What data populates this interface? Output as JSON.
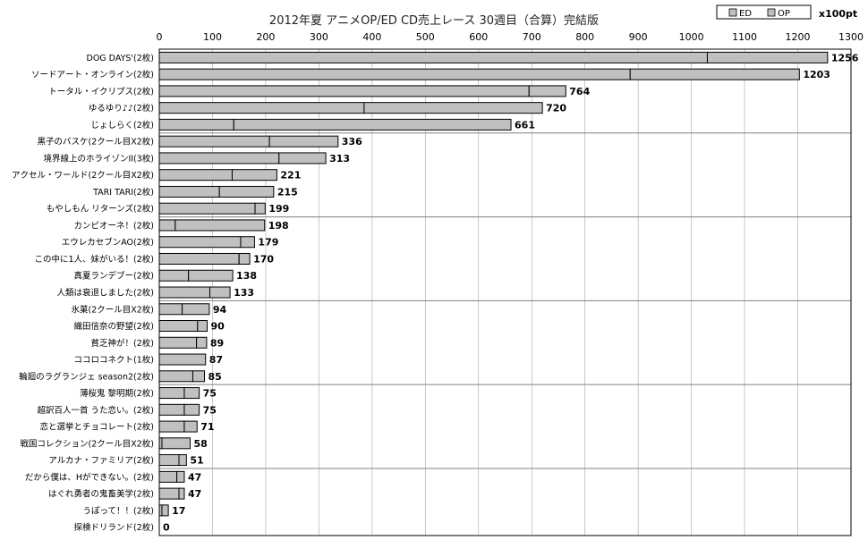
{
  "chart_data": {
    "type": "bar",
    "orientation": "horizontal",
    "stacked": true,
    "title": "2012年夏 アニメOP/ED CD売上レース 30週目（合算）完結版",
    "unit": "x100pt",
    "xlim": [
      0,
      1300
    ],
    "xticks": [
      0,
      100,
      200,
      300,
      400,
      500,
      600,
      700,
      800,
      900,
      1000,
      1100,
      1200,
      1300
    ],
    "grid": true,
    "legend_position": "top-right",
    "legend": [
      "ED",
      "OP"
    ],
    "categories": [
      "DOG DAYS'(2枚)",
      "ソードアート・オンライン(2枚)",
      "トータル・イクリプス(2枚)",
      "ゆるゆり♪♪(2枚)",
      "じょしらく(2枚)",
      "黒子のバスケ(2クール目X2枚)",
      "境界線上のホライゾンII(3枚)",
      "アクセル・ワールド(2クール目X2枚)",
      "TARI TARI(2枚)",
      "もやしもん リターンズ(2枚)",
      "カンピオーネ！(2枚)",
      "エウレカセブンAO(2枚)",
      "この中に1人、妹がいる！(2枚)",
      "真夏ランデブー(2枚)",
      "人類は衰退しました(2枚)",
      "氷菓(2クール目X2枚)",
      "織田信奈の野望(2枚)",
      "貧乏神が！(2枚)",
      "ココロコネクト(1枚)",
      "輪廻のラグランジェ season2(2枚)",
      "薄桜鬼 黎明期(2枚)",
      "超訳百人一首 うた恋い。(2枚)",
      "恋と選挙とチョコレート(2枚)",
      "戦国コレクション(2クール目X2枚)",
      "アルカナ・ファミリア(2枚)",
      "だから僕は、Hができない。(2枚)",
      "はぐれ勇者の鬼畜美学(2枚)",
      "うぽって！！(2枚)",
      "探検ドリランド(2枚)"
    ],
    "totals": [
      1256,
      1203,
      764,
      720,
      661,
      336,
      313,
      221,
      215,
      199,
      198,
      179,
      170,
      138,
      133,
      94,
      90,
      89,
      87,
      85,
      75,
      75,
      71,
      58,
      51,
      47,
      47,
      17,
      0
    ],
    "series": [
      {
        "name": "OP",
        "values": [
          1030,
          885,
          695,
          385,
          140,
          207,
          225,
          137,
          113,
          180,
          30,
          153,
          150,
          55,
          95,
          43,
          72,
          70,
          87,
          63,
          47,
          47,
          47,
          5,
          37,
          33,
          37,
          5,
          0
        ]
      },
      {
        "name": "ED",
        "values": [
          226,
          318,
          69,
          335,
          521,
          129,
          88,
          84,
          102,
          19,
          168,
          26,
          20,
          83,
          38,
          51,
          18,
          19,
          0,
          22,
          28,
          28,
          24,
          53,
          14,
          14,
          10,
          12,
          0
        ]
      }
    ],
    "group_separators_after": [
      4,
      9,
      14,
      19,
      24
    ],
    "colors": {
      "bar": "#c0c0c0",
      "bar_stroke": "#000000",
      "grid": "#a6a6a6",
      "separator": "#808080"
    }
  }
}
